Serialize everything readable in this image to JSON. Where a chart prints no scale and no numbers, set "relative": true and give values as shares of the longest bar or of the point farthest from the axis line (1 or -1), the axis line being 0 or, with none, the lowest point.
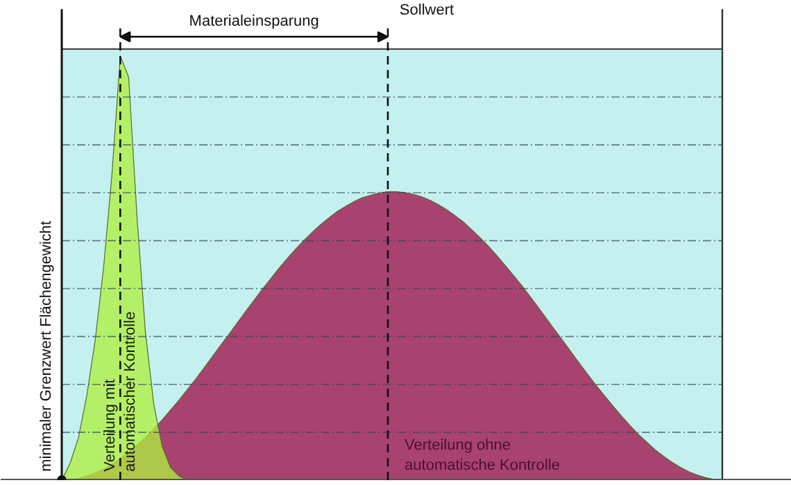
{
  "chart_data": {
    "type": "area",
    "relative": true,
    "grid": "y",
    "categories": [
      null,
      null,
      null,
      null,
      null,
      null,
      null,
      null,
      null,
      null,
      null,
      null,
      null,
      null,
      null,
      null,
      null,
      null,
      null,
      null,
      null,
      null,
      null,
      null,
      null,
      null,
      null,
      null,
      null,
      null,
      null,
      null,
      null,
      null,
      null,
      null,
      null,
      null,
      null,
      null,
      null,
      null,
      null,
      null,
      null,
      null,
      null,
      null,
      null,
      null,
      null,
      null,
      null,
      null,
      null,
      null,
      null,
      null,
      null,
      null,
      null,
      null,
      null,
      null,
      null,
      null,
      null,
      null,
      null,
      null,
      null,
      null,
      null,
      null,
      null,
      null,
      null,
      null,
      null,
      null
    ],
    "series": [
      {
        "name": "Verteilung ohne automatische Kontrolle",
        "color": "#a8426f",
        "values": [
          0,
          0.001,
          0.004,
          0.01,
          0.017,
          0.026,
          0.038,
          0.051,
          0.066,
          0.083,
          0.101,
          0.121,
          0.142,
          0.165,
          0.188,
          0.213,
          0.238,
          0.264,
          0.291,
          0.318,
          0.344,
          0.371,
          0.398,
          0.424,
          0.45,
          0.475,
          0.5,
          0.523,
          0.545,
          0.566,
          0.585,
          0.603,
          0.619,
          0.634,
          0.646,
          0.657,
          0.666,
          0.672,
          0.677,
          0.68,
          0.68,
          0.678,
          0.674,
          0.668,
          0.66,
          0.65,
          0.638,
          0.624,
          0.609,
          0.591,
          0.572,
          0.552,
          0.53,
          0.507,
          0.483,
          0.459,
          0.433,
          0.407,
          0.38,
          0.353,
          0.327,
          0.3,
          0.273,
          0.247,
          0.221,
          0.197,
          0.173,
          0.15,
          0.128,
          0.107,
          0.089,
          0.071,
          0.056,
          0.042,
          0.03,
          0.02,
          0.012,
          0.006,
          0.002,
          0
        ]
      },
      {
        "name": "Verteilung mit automatischer Kontrolle",
        "color": "#b0f040",
        "values": [
          0,
          0.04,
          0.1,
          0.2,
          0.33,
          0.5,
          0.72,
          1,
          0.95,
          0.62,
          0.35,
          0.18,
          0.08,
          0.03,
          0.01,
          0,
          null,
          null,
          null,
          null,
          null,
          null,
          null,
          null,
          null,
          null,
          null,
          null,
          null,
          null,
          null,
          null,
          null,
          null,
          null,
          null,
          null,
          null,
          null,
          null,
          null,
          null,
          null,
          null,
          null,
          null,
          null,
          null,
          null,
          null,
          null,
          null,
          null,
          null,
          null,
          null,
          null,
          null,
          null,
          null,
          null,
          null,
          null,
          null,
          null,
          null,
          null,
          null,
          null,
          null,
          null,
          null,
          null,
          null,
          null,
          null,
          null,
          null,
          null,
          null
        ]
      }
    ],
    "annotations": [
      "minimaler Grenzwert Flächengewicht",
      "Materialeinsparung",
      "Sollwert"
    ]
  }
}
